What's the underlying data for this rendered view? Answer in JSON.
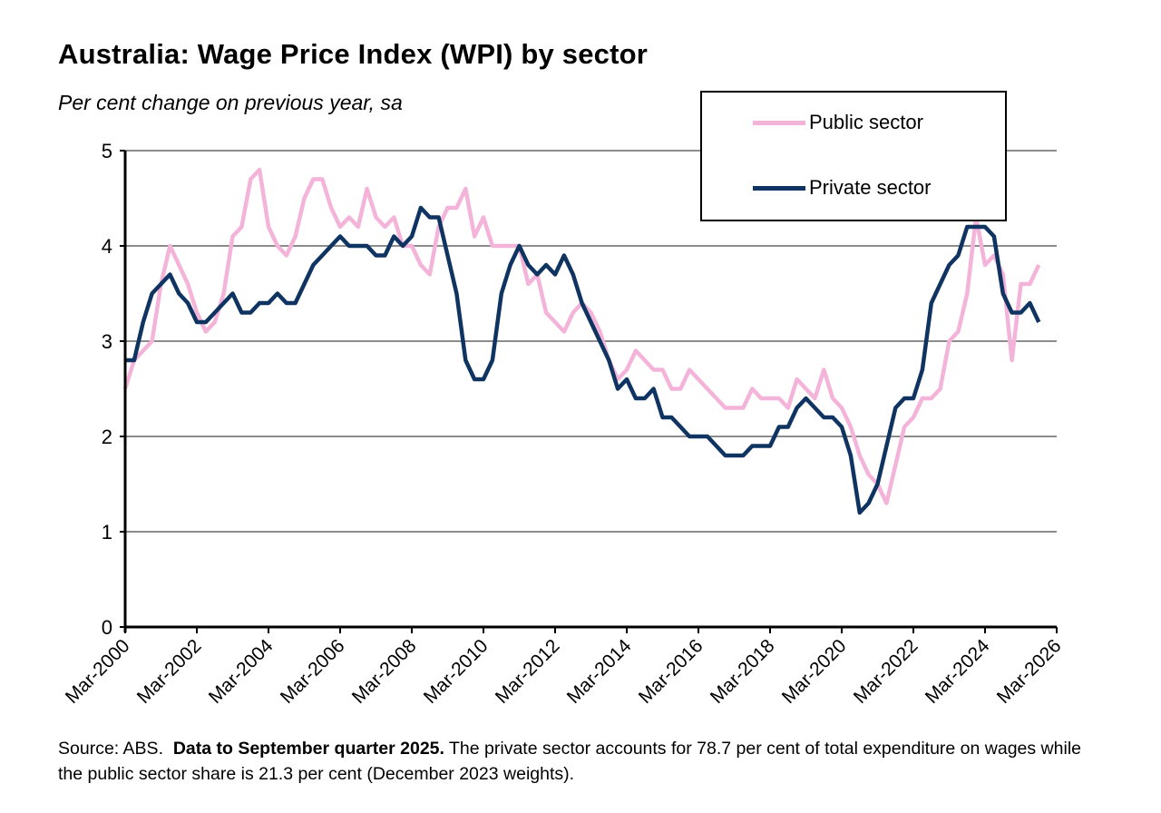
{
  "chart_data": {
    "type": "line",
    "title": "Australia: Wage Price Index (WPI) by sector",
    "subtitle": "Per cent change on previous year, sa",
    "xlabel": "",
    "ylabel": "",
    "ylim": [
      0,
      5
    ],
    "yticks": [
      "0",
      "1",
      "2",
      "3",
      "4",
      "5"
    ],
    "xlim": [
      "Mar-2000",
      "Mar-2026"
    ],
    "xticks": [
      "Mar-2000",
      "Mar-2002",
      "Mar-2004",
      "Mar-2006",
      "Mar-2008",
      "Mar-2010",
      "Mar-2012",
      "Mar-2014",
      "Mar-2016",
      "Mar-2018",
      "Mar-2020",
      "Mar-2022",
      "Mar-2024",
      "Mar-2026"
    ],
    "x_frequency": "quarterly",
    "x_first": "Mar-2000",
    "x_last": "Sep-2025",
    "grid": "horizontal",
    "legend_placement": "top-right",
    "series": [
      {
        "name": "Public sector",
        "color": "#F4B4DA",
        "values": [
          2.5,
          2.8,
          2.9,
          3.0,
          3.6,
          4.0,
          3.8,
          3.6,
          3.3,
          3.1,
          3.2,
          3.5,
          4.1,
          4.2,
          4.7,
          4.8,
          4.2,
          4.0,
          3.9,
          4.1,
          4.5,
          4.7,
          4.7,
          4.4,
          4.2,
          4.3,
          4.2,
          4.6,
          4.3,
          4.2,
          4.3,
          4.0,
          4.0,
          3.8,
          3.7,
          4.2,
          4.4,
          4.4,
          4.6,
          4.1,
          4.3,
          4.0,
          4.0,
          4.0,
          4.0,
          3.6,
          3.7,
          3.3,
          3.2,
          3.1,
          3.3,
          3.4,
          3.3,
          3.1,
          2.8,
          2.6,
          2.7,
          2.9,
          2.8,
          2.7,
          2.7,
          2.5,
          2.5,
          2.7,
          2.6,
          2.5,
          2.4,
          2.3,
          2.3,
          2.3,
          2.5,
          2.4,
          2.4,
          2.4,
          2.3,
          2.6,
          2.5,
          2.4,
          2.7,
          2.4,
          2.3,
          2.1,
          1.8,
          1.6,
          1.5,
          1.3,
          1.7,
          2.1,
          2.2,
          2.4,
          2.4,
          2.5,
          3.0,
          3.1,
          3.5,
          4.3,
          3.8,
          3.9,
          3.7,
          2.8,
          3.6,
          3.6,
          3.8
        ]
      },
      {
        "name": "Private sector",
        "color": "#0F3461",
        "values": [
          2.8,
          2.8,
          3.2,
          3.5,
          3.6,
          3.7,
          3.5,
          3.4,
          3.2,
          3.2,
          3.3,
          3.4,
          3.5,
          3.3,
          3.3,
          3.4,
          3.4,
          3.5,
          3.4,
          3.4,
          3.6,
          3.8,
          3.9,
          4.0,
          4.1,
          4.0,
          4.0,
          4.0,
          3.9,
          3.9,
          4.1,
          4.0,
          4.1,
          4.4,
          4.3,
          4.3,
          3.9,
          3.5,
          2.8,
          2.6,
          2.6,
          2.8,
          3.5,
          3.8,
          4.0,
          3.8,
          3.7,
          3.8,
          3.7,
          3.9,
          3.7,
          3.4,
          3.2,
          3.0,
          2.8,
          2.5,
          2.6,
          2.4,
          2.4,
          2.5,
          2.2,
          2.2,
          2.1,
          2.0,
          2.0,
          2.0,
          1.9,
          1.8,
          1.8,
          1.8,
          1.9,
          1.9,
          1.9,
          2.1,
          2.1,
          2.3,
          2.4,
          2.3,
          2.2,
          2.2,
          2.1,
          1.8,
          1.2,
          1.3,
          1.5,
          1.9,
          2.3,
          2.4,
          2.4,
          2.7,
          3.4,
          3.6,
          3.8,
          3.9,
          4.2,
          4.2,
          4.2,
          4.1,
          3.5,
          3.3,
          3.3,
          3.4,
          3.2
        ]
      }
    ]
  },
  "footer": {
    "source": "Source: ABS.",
    "bold_note": "Data to September quarter 2025.",
    "note": "The private sector accounts for 78.7 per cent of total expenditure on wages while the public sector share is 21.3 per cent (December 2023 weights)."
  }
}
